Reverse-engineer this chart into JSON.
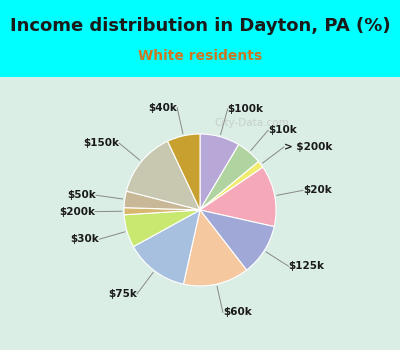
{
  "title": "Income distribution in Dayton, PA (%)",
  "subtitle": "White residents",
  "background_color": "#00FFFF",
  "chart_bg_top": "#d8ede0",
  "chart_bg_bottom": "#e8f5f0",
  "watermark": "City-Data.com",
  "labels_cw": [
    "$100k",
    "$10k",
    "> $200k",
    "$20k",
    "$125k",
    "$60k",
    "$75k",
    "$30k",
    "$200k",
    "$50k",
    "$150k",
    "$40k"
  ],
  "sizes_cw": [
    8.5,
    5.5,
    1.5,
    13.0,
    11.0,
    14.0,
    13.5,
    7.0,
    1.5,
    3.5,
    14.0,
    7.0
  ],
  "colors_cw": [
    "#b8a8d8",
    "#b0d4a0",
    "#f0ec70",
    "#f4a8b8",
    "#a0a8d8",
    "#f5c8a0",
    "#a8c0e0",
    "#c8e870",
    "#d8b870",
    "#c8b898",
    "#c8c8b0",
    "#c8a030"
  ],
  "startangle": 90,
  "title_fontsize": 13,
  "subtitle_fontsize": 10,
  "label_fontsize": 7.5
}
